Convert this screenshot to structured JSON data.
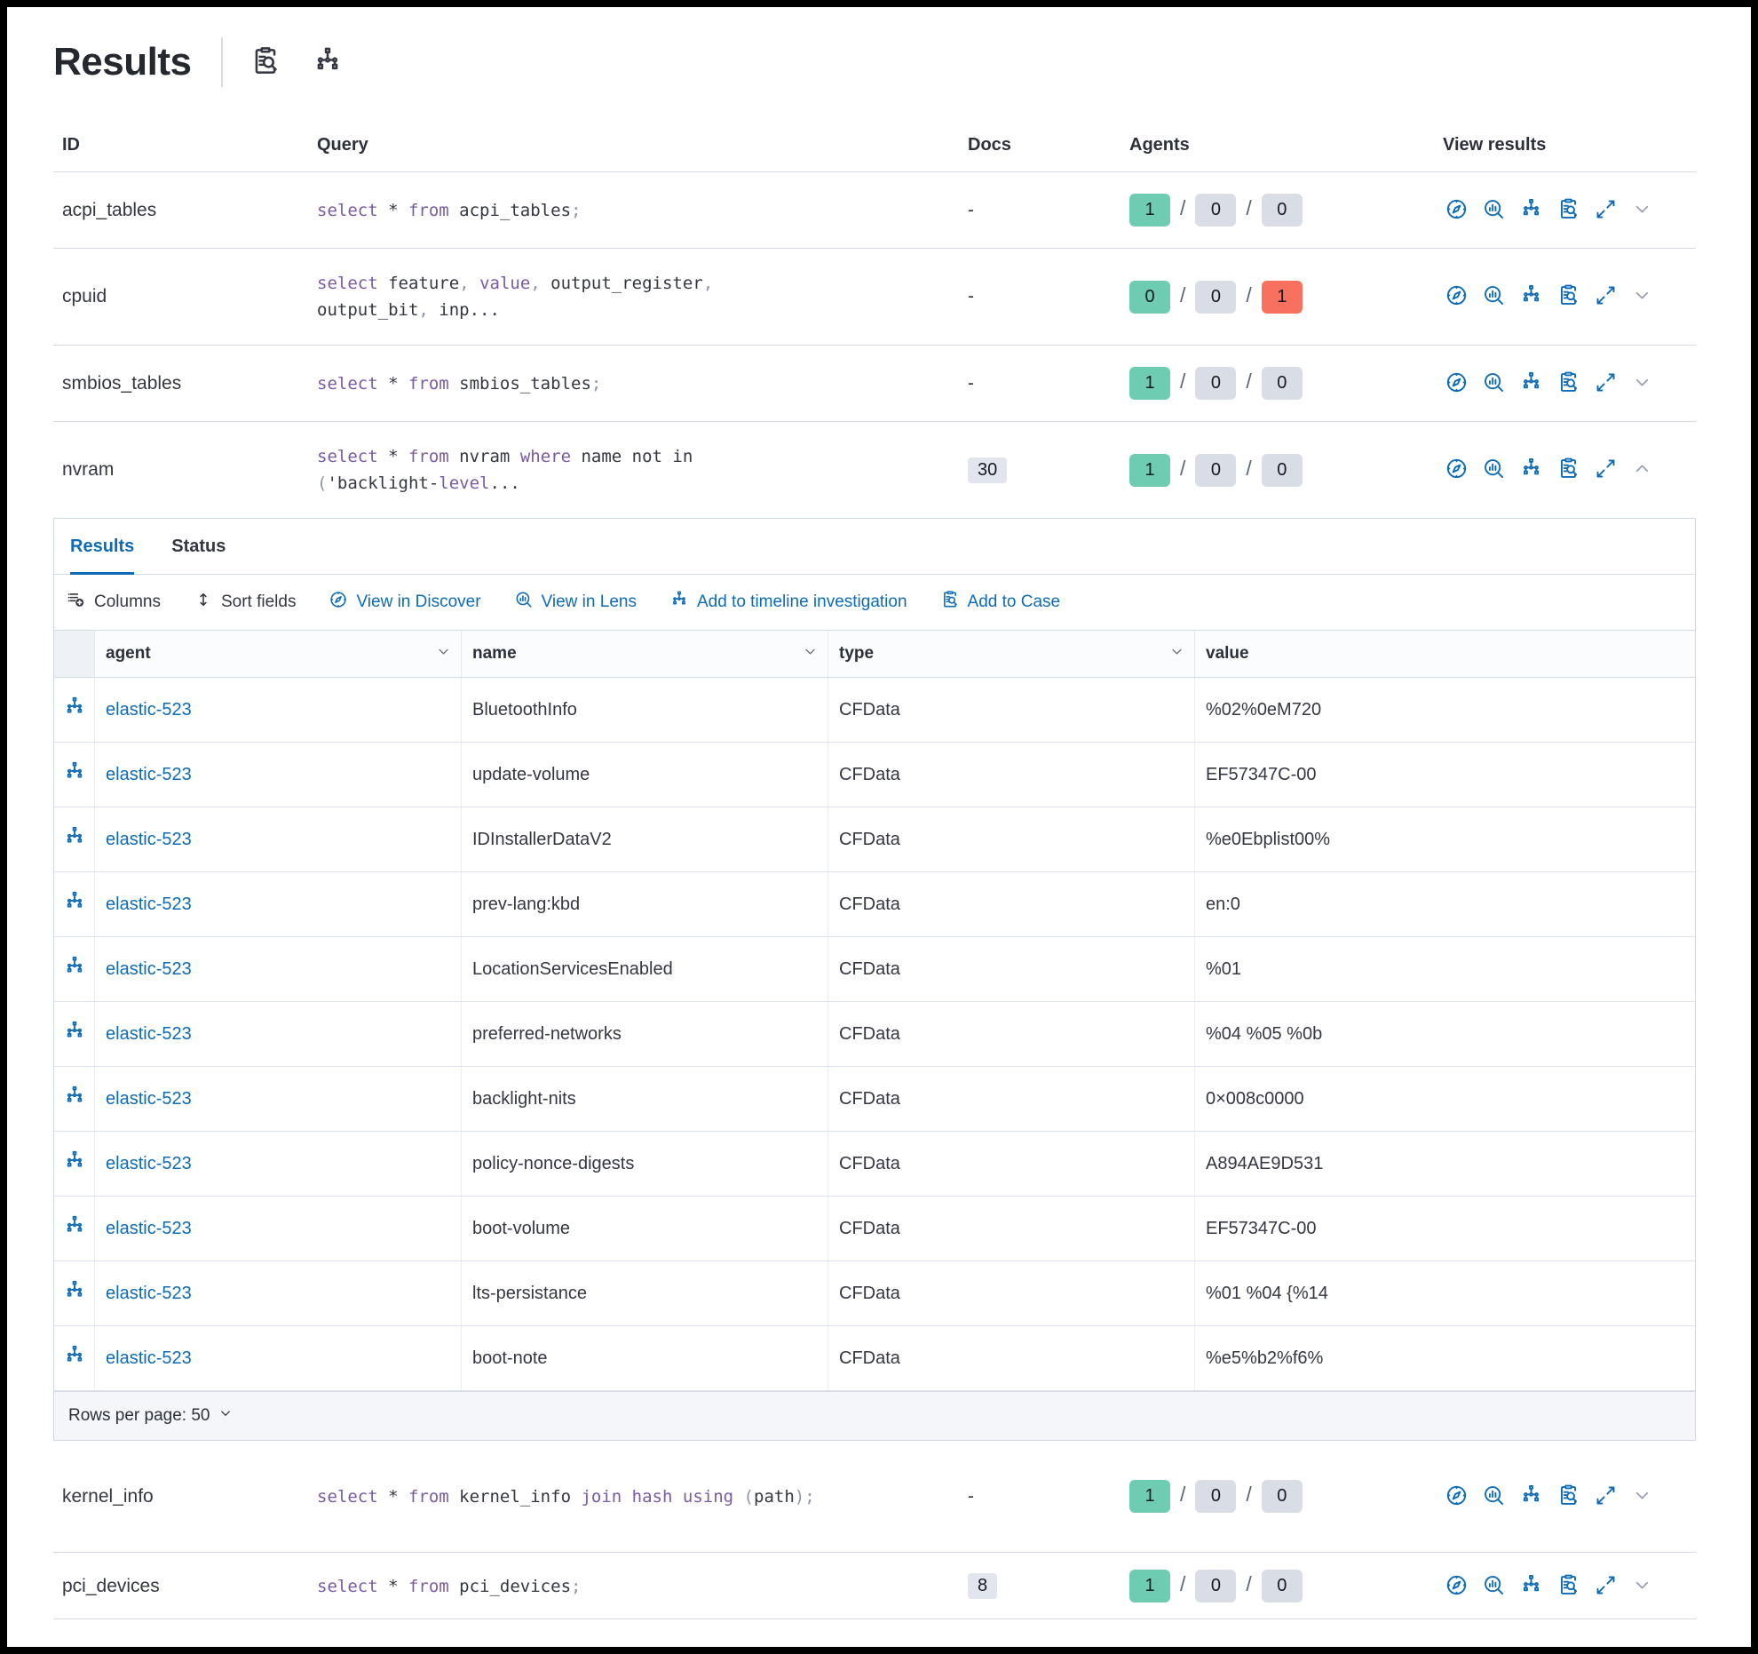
{
  "title": "Results",
  "table": {
    "headers": {
      "id": "ID",
      "query": "Query",
      "docs": "Docs",
      "agents": "Agents",
      "view": "View results"
    }
  },
  "queries": [
    {
      "id": "acpi_tables",
      "docs": "-",
      "agents": [
        1,
        0,
        0
      ],
      "expanded": false,
      "query": [
        [
          [
            "select",
            "k"
          ],
          [
            " * ",
            "d"
          ],
          [
            "from",
            "k"
          ],
          [
            " acpi_tables",
            "d"
          ],
          [
            ";",
            "p"
          ]
        ]
      ]
    },
    {
      "id": "cpuid",
      "docs": "-",
      "agents": [
        0,
        0,
        1
      ],
      "expanded": false,
      "query": [
        [
          [
            "select",
            "k"
          ],
          [
            " feature",
            "d"
          ],
          [
            ",",
            "p"
          ],
          [
            " ",
            "d"
          ],
          [
            "value",
            "k"
          ],
          [
            ",",
            "p"
          ],
          [
            " output_register",
            "d"
          ],
          [
            ",",
            "p"
          ]
        ],
        [
          [
            "output_bit",
            "d"
          ],
          [
            ",",
            "p"
          ],
          [
            " inp...",
            "d"
          ]
        ]
      ]
    },
    {
      "id": "smbios_tables",
      "docs": "-",
      "agents": [
        1,
        0,
        0
      ],
      "expanded": false,
      "query": [
        [
          [
            "select",
            "k"
          ],
          [
            " * ",
            "d"
          ],
          [
            "from",
            "k"
          ],
          [
            " smbios_tables",
            "d"
          ],
          [
            ";",
            "p"
          ]
        ]
      ]
    },
    {
      "id": "nvram",
      "docs": "30",
      "agents": [
        1,
        0,
        0
      ],
      "expanded": true,
      "query": [
        [
          [
            "select",
            "k"
          ],
          [
            " * ",
            "d"
          ],
          [
            "from",
            "k"
          ],
          [
            " nvram ",
            "d"
          ],
          [
            "where",
            "k"
          ],
          [
            " name not in",
            "d"
          ]
        ],
        [
          [
            "(",
            "p"
          ],
          [
            "'backlight-",
            "d"
          ],
          [
            "level",
            "k"
          ],
          [
            "...",
            "d"
          ]
        ]
      ]
    },
    {
      "id": "kernel_info",
      "docs": "-",
      "agents": [
        1,
        0,
        0
      ],
      "expanded": false,
      "query": [
        [
          [
            "select",
            "k"
          ],
          [
            " * ",
            "d"
          ],
          [
            "from",
            "k"
          ],
          [
            " kernel_info ",
            "d"
          ],
          [
            "join",
            "k"
          ],
          [
            " ",
            "d"
          ],
          [
            "hash",
            "k"
          ],
          [
            " ",
            "d"
          ],
          [
            "using",
            "k"
          ],
          [
            " ",
            "d"
          ],
          [
            "(",
            "p"
          ],
          [
            "path",
            "d"
          ],
          [
            ")",
            "p"
          ],
          [
            ";",
            "p"
          ]
        ]
      ]
    },
    {
      "id": "pci_devices",
      "docs": "8",
      "agents": [
        1,
        0,
        0
      ],
      "expanded": false,
      "query": [
        [
          [
            "select",
            "k"
          ],
          [
            " * ",
            "d"
          ],
          [
            "from",
            "k"
          ],
          [
            " pci_devices",
            "d"
          ],
          [
            ";",
            "p"
          ]
        ]
      ]
    }
  ],
  "panel": {
    "tabs": [
      {
        "label": "Results",
        "active": true
      },
      {
        "label": "Status",
        "active": false
      }
    ],
    "toolbar": [
      {
        "label": "Columns",
        "icon": "columns",
        "style": "dark"
      },
      {
        "label": "Sort fields",
        "icon": "sort",
        "style": "dark"
      },
      {
        "label": "View in Discover",
        "icon": "discover",
        "style": "blue"
      },
      {
        "label": "View in Lens",
        "icon": "lens",
        "style": "blue"
      },
      {
        "label": "Add to timeline investigation",
        "icon": "timeline",
        "style": "blue"
      },
      {
        "label": "Add to Case",
        "icon": "inspect",
        "style": "blue"
      }
    ],
    "grid": {
      "columns": [
        {
          "label": "agent"
        },
        {
          "label": "name"
        },
        {
          "label": "type"
        },
        {
          "label": "value"
        }
      ],
      "rows": [
        {
          "agent": "elastic-523",
          "name": "BluetoothInfo",
          "type": "CFData",
          "value": "%02%0eM720"
        },
        {
          "agent": "elastic-523",
          "name": "update-volume",
          "type": "CFData",
          "value": "EF57347C-00"
        },
        {
          "agent": "elastic-523",
          "name": "IDInstallerDataV2",
          "type": "CFData",
          "value": "%e0Ebplist00%"
        },
        {
          "agent": "elastic-523",
          "name": "prev-lang:kbd",
          "type": "CFData",
          "value": "en:0"
        },
        {
          "agent": "elastic-523",
          "name": "LocationServicesEnabled",
          "type": "CFData",
          "value": "%01"
        },
        {
          "agent": "elastic-523",
          "name": "preferred-networks",
          "type": "CFData",
          "value": "%04 %05 %0b"
        },
        {
          "agent": "elastic-523",
          "name": "backlight-nits",
          "type": "CFData",
          "value": "0×008c0000"
        },
        {
          "agent": "elastic-523",
          "name": "policy-nonce-digests",
          "type": "CFData",
          "value": "A894AE9D531"
        },
        {
          "agent": "elastic-523",
          "name": "boot-volume",
          "type": "CFData",
          "value": "EF57347C-00"
        },
        {
          "agent": "elastic-523",
          "name": "lts-persistance",
          "type": "CFData",
          "value": "%01 %04 {%14"
        },
        {
          "agent": "elastic-523",
          "name": "boot-note",
          "type": "CFData",
          "value": "%e5%b2%f6%"
        }
      ],
      "footer": "Rows per page: 50"
    }
  },
  "colors": {
    "accent_blue": "#0d6bb7",
    "success_badge": "#6dccb1",
    "danger_badge": "#f8705e",
    "neutral_badge": "#d9dde6",
    "keyword_purple": "#7a5aa5",
    "border": "#d3dae6"
  }
}
